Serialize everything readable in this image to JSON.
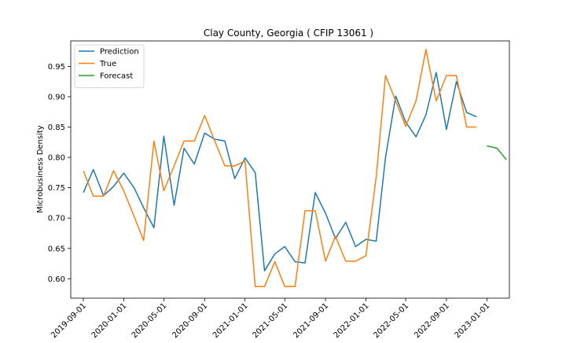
{
  "chart_data": {
    "type": "line",
    "title": "Clay County, Georgia ( CFIP 13061 )",
    "xlabel": "",
    "ylabel": "Microbusiness Density",
    "xlim": [
      "2019-07-25",
      "2023-03-10"
    ],
    "ylim": [
      0.568,
      0.992
    ],
    "grid": false,
    "legend_position": "top-left",
    "x_ticks": [
      "2019-09-01",
      "2020-01-01",
      "2020-05-01",
      "2020-09-01",
      "2021-01-01",
      "2021-05-01",
      "2021-09-01",
      "2022-01-01",
      "2022-05-01",
      "2022-09-01",
      "2023-01-01"
    ],
    "y_ticks": [
      "0.60",
      "0.65",
      "0.70",
      "0.75",
      "0.80",
      "0.85",
      "0.90",
      "0.95"
    ],
    "series": [
      {
        "name": "Prediction",
        "color": "#1f77b4",
        "points": [
          [
            "2019-09-01",
            0.742
          ],
          [
            "2019-10-01",
            0.78
          ],
          [
            "2019-11-01",
            0.737
          ],
          [
            "2019-12-01",
            0.752
          ],
          [
            "2020-01-01",
            0.774
          ],
          [
            "2020-02-01",
            0.75
          ],
          [
            "2020-03-01",
            0.717
          ],
          [
            "2020-04-01",
            0.684
          ],
          [
            "2020-05-01",
            0.835
          ],
          [
            "2020-06-01",
            0.721
          ],
          [
            "2020-07-01",
            0.815
          ],
          [
            "2020-08-01",
            0.789
          ],
          [
            "2020-09-01",
            0.84
          ],
          [
            "2020-10-01",
            0.83
          ],
          [
            "2020-11-01",
            0.827
          ],
          [
            "2020-12-01",
            0.765
          ],
          [
            "2021-01-01",
            0.799
          ],
          [
            "2021-02-01",
            0.775
          ],
          [
            "2021-03-01",
            0.613
          ],
          [
            "2021-04-01",
            0.641
          ],
          [
            "2021-05-01",
            0.653
          ],
          [
            "2021-06-01",
            0.628
          ],
          [
            "2021-07-01",
            0.626
          ],
          [
            "2021-08-01",
            0.742
          ],
          [
            "2021-09-01",
            0.708
          ],
          [
            "2021-10-01",
            0.666
          ],
          [
            "2021-11-01",
            0.693
          ],
          [
            "2021-12-01",
            0.653
          ],
          [
            "2022-01-01",
            0.665
          ],
          [
            "2022-02-01",
            0.662
          ],
          [
            "2022-03-01",
            0.8
          ],
          [
            "2022-04-01",
            0.901
          ],
          [
            "2022-05-01",
            0.858
          ],
          [
            "2022-06-01",
            0.834
          ],
          [
            "2022-07-01",
            0.87
          ],
          [
            "2022-08-01",
            0.94
          ],
          [
            "2022-09-01",
            0.846
          ],
          [
            "2022-10-01",
            0.925
          ],
          [
            "2022-11-01",
            0.874
          ],
          [
            "2022-12-01",
            0.867
          ]
        ]
      },
      {
        "name": "True",
        "color": "#ff7f0e",
        "points": [
          [
            "2019-09-01",
            0.778
          ],
          [
            "2019-10-01",
            0.736
          ],
          [
            "2019-11-01",
            0.736
          ],
          [
            "2019-12-01",
            0.778
          ],
          [
            "2020-01-01",
            0.745
          ],
          [
            "2020-02-01",
            0.703
          ],
          [
            "2020-03-01",
            0.663
          ],
          [
            "2020-04-01",
            0.827
          ],
          [
            "2020-05-01",
            0.745
          ],
          [
            "2020-06-01",
            0.786
          ],
          [
            "2020-07-01",
            0.827
          ],
          [
            "2020-08-01",
            0.827
          ],
          [
            "2020-09-01",
            0.869
          ],
          [
            "2020-10-01",
            0.828
          ],
          [
            "2020-11-01",
            0.786
          ],
          [
            "2020-12-01",
            0.786
          ],
          [
            "2021-01-01",
            0.794
          ],
          [
            "2021-02-01",
            0.587
          ],
          [
            "2021-03-01",
            0.587
          ],
          [
            "2021-04-01",
            0.628
          ],
          [
            "2021-05-01",
            0.587
          ],
          [
            "2021-06-01",
            0.587
          ],
          [
            "2021-07-01",
            0.712
          ],
          [
            "2021-08-01",
            0.712
          ],
          [
            "2021-09-01",
            0.629
          ],
          [
            "2021-10-01",
            0.67
          ],
          [
            "2021-11-01",
            0.629
          ],
          [
            "2021-12-01",
            0.629
          ],
          [
            "2022-01-01",
            0.638
          ],
          [
            "2022-02-01",
            0.768
          ],
          [
            "2022-03-01",
            0.935
          ],
          [
            "2022-04-01",
            0.893
          ],
          [
            "2022-05-01",
            0.851
          ],
          [
            "2022-06-01",
            0.893
          ],
          [
            "2022-07-01",
            0.978
          ],
          [
            "2022-08-01",
            0.893
          ],
          [
            "2022-09-01",
            0.935
          ],
          [
            "2022-10-01",
            0.935
          ],
          [
            "2022-11-01",
            0.85
          ],
          [
            "2022-12-01",
            0.85
          ]
        ]
      },
      {
        "name": "Forecast",
        "color": "#2ca02c",
        "points": [
          [
            "2023-01-01",
            0.819
          ],
          [
            "2023-02-01",
            0.815
          ],
          [
            "2023-03-01",
            0.796
          ]
        ]
      }
    ]
  }
}
